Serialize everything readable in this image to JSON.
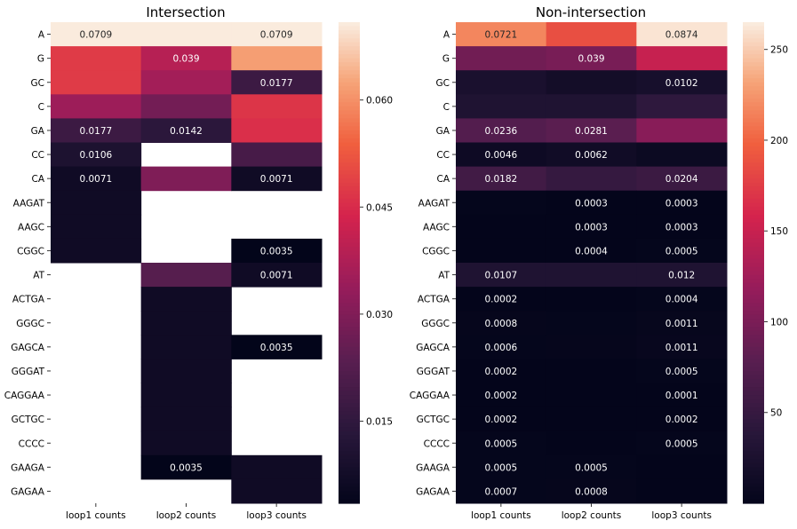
{
  "chart_data": [
    {
      "type": "heatmap",
      "title": "Intersection",
      "rows": [
        "A",
        "G",
        "GC",
        "C",
        "GA",
        "CC",
        "CA",
        "AAGAT",
        "AAGC",
        "CGGC",
        "AT",
        "ACTGA",
        "GGGC",
        "GAGCA",
        "GGGAT",
        "CAGGAA",
        "GCTGC",
        "CCCC",
        "GAAGA",
        "GAGAA"
      ],
      "columns": [
        "loop1 counts",
        "loop2 counts",
        "loop3 counts"
      ],
      "values": [
        [
          0.0709,
          0.0709,
          0.0709
        ],
        [
          0.048,
          0.039,
          0.062
        ],
        [
          0.048,
          0.036,
          0.0177
        ],
        [
          0.035,
          0.028,
          0.047
        ],
        [
          0.0177,
          0.0142,
          0.046
        ],
        [
          0.0106,
          null,
          0.02
        ],
        [
          0.0071,
          0.03,
          0.0071
        ],
        [
          0.0071,
          null,
          null
        ],
        [
          0.0071,
          null,
          null
        ],
        [
          0.0071,
          null,
          0.0035
        ],
        [
          null,
          0.023,
          0.0071
        ],
        [
          null,
          0.0071,
          null
        ],
        [
          null,
          0.0071,
          null
        ],
        [
          null,
          0.0071,
          0.0035
        ],
        [
          null,
          0.0071,
          null
        ],
        [
          null,
          0.0071,
          null
        ],
        [
          null,
          0.0071,
          null
        ],
        [
          null,
          0.0071,
          null
        ],
        [
          null,
          0.0035,
          0.0071
        ],
        [
          null,
          null,
          0.0071
        ]
      ],
      "annotations": [
        [
          "0.0709",
          "",
          "0.0709"
        ],
        [
          "",
          "0.039",
          ""
        ],
        [
          "",
          "",
          "0.0177"
        ],
        [
          "",
          "",
          ""
        ],
        [
          "0.0177",
          "0.0142",
          ""
        ],
        [
          "0.0106",
          "",
          ""
        ],
        [
          "0.0071",
          "",
          "0.0071"
        ],
        [
          "",
          "",
          ""
        ],
        [
          "",
          "",
          ""
        ],
        [
          "",
          "",
          "0.0035"
        ],
        [
          "",
          "",
          "0.0071"
        ],
        [
          "",
          "",
          ""
        ],
        [
          "",
          "",
          ""
        ],
        [
          "",
          "",
          "0.0035"
        ],
        [
          "",
          "",
          ""
        ],
        [
          "",
          "",
          ""
        ],
        [
          "",
          "",
          ""
        ],
        [
          "",
          "",
          ""
        ],
        [
          "",
          "0.0035",
          ""
        ],
        [
          "",
          "",
          ""
        ]
      ],
      "colorbar": {
        "vmin": 0.0035,
        "vmax": 0.0709,
        "ticks": [
          0.015,
          0.03,
          0.045,
          0.06
        ],
        "tick_labels": [
          "0.015",
          "0.030",
          "0.045",
          "0.060"
        ]
      },
      "colormap": "rocket"
    },
    {
      "type": "heatmap",
      "title": "Non-intersection",
      "rows": [
        "A",
        "G",
        "GC",
        "C",
        "GA",
        "CC",
        "CA",
        "AAGAT",
        "AAGC",
        "CGGC",
        "AT",
        "ACTGA",
        "GGGC",
        "GAGCA",
        "GGGAT",
        "CAGGAA",
        "GCTGC",
        "CCCC",
        "GAAGA",
        "GAGAA"
      ],
      "columns": [
        "loop1 counts",
        "loop2 counts",
        "loop3 counts"
      ],
      "values": [
        [
          218,
          188,
          262
        ],
        [
          95,
          100,
          150
        ],
        [
          25,
          18,
          22
        ],
        [
          30,
          30,
          45
        ],
        [
          75,
          80,
          110
        ],
        [
          12,
          15,
          10
        ],
        [
          60,
          50,
          55
        ],
        [
          2,
          1,
          1
        ],
        [
          1,
          1,
          1
        ],
        [
          1,
          1,
          2
        ],
        [
          30,
          30,
          30
        ],
        [
          1,
          1,
          2
        ],
        [
          3,
          2,
          4
        ],
        [
          2,
          3,
          5
        ],
        [
          1,
          1,
          2
        ],
        [
          1,
          1,
          1
        ],
        [
          1,
          1,
          1
        ],
        [
          2,
          1,
          2
        ],
        [
          2,
          2,
          1
        ],
        [
          2,
          3,
          1
        ]
      ],
      "annotations": [
        [
          "0.0721",
          "",
          "0.0874"
        ],
        [
          "",
          "0.039",
          ""
        ],
        [
          "",
          "",
          "0.0102"
        ],
        [
          "",
          "",
          ""
        ],
        [
          "0.0236",
          "0.0281",
          ""
        ],
        [
          "0.0046",
          "0.0062",
          ""
        ],
        [
          "0.0182",
          "",
          "0.0204"
        ],
        [
          "",
          "0.0003",
          "0.0003"
        ],
        [
          "",
          "0.0003",
          "0.0003"
        ],
        [
          "",
          "0.0004",
          "0.0005"
        ],
        [
          "0.0107",
          "",
          "0.012"
        ],
        [
          "0.0002",
          "",
          "0.0004"
        ],
        [
          "0.0008",
          "",
          "0.0011"
        ],
        [
          "0.0006",
          "",
          "0.0011"
        ],
        [
          "0.0002",
          "",
          "0.0005"
        ],
        [
          "0.0002",
          "",
          "0.0001"
        ],
        [
          "0.0002",
          "",
          "0.0002"
        ],
        [
          "0.0005",
          "",
          "0.0005"
        ],
        [
          "0.0005",
          "0.0005",
          ""
        ],
        [
          "0.0007",
          "0.0008",
          ""
        ]
      ],
      "colorbar": {
        "vmin": 0,
        "vmax": 265,
        "ticks": [
          50,
          100,
          150,
          200,
          250
        ],
        "tick_labels": [
          "50",
          "100",
          "150",
          "200",
          "250"
        ]
      },
      "colormap": "rocket"
    }
  ]
}
